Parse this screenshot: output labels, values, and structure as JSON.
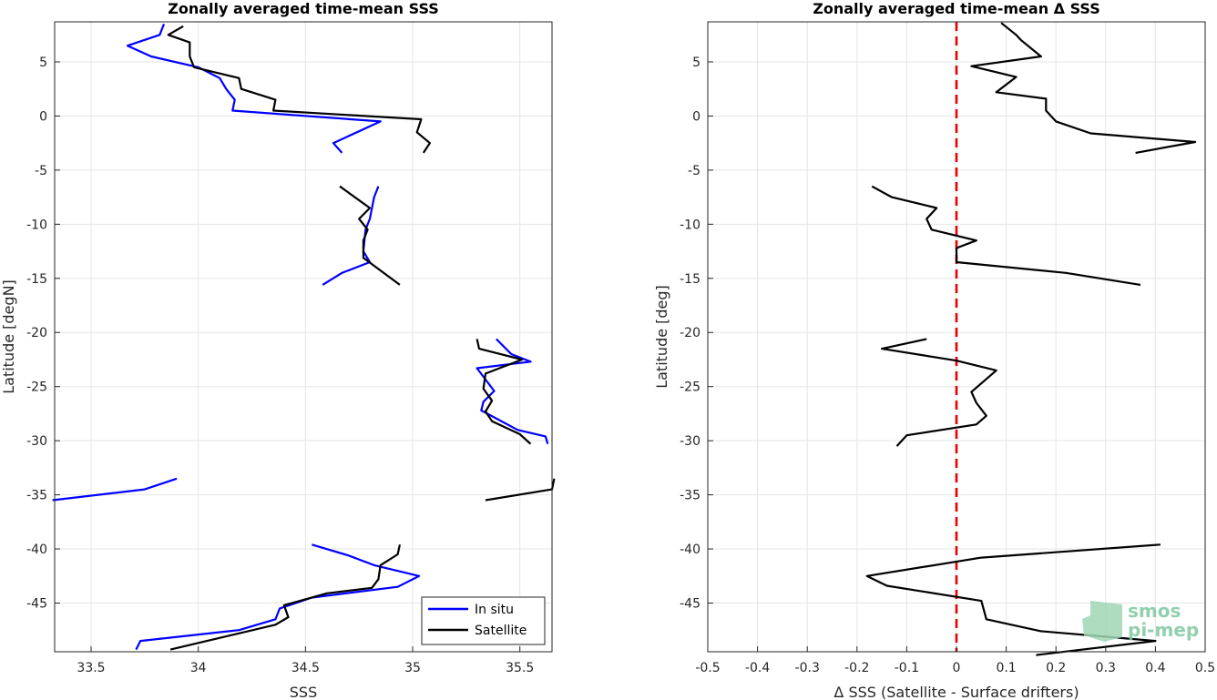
{
  "chart_data": [
    {
      "type": "line",
      "title": "Zonally averaged time-mean SSS",
      "xlabel": "SSS",
      "ylabel": "Latitude [degN]",
      "xlim": [
        33.33,
        35.65
      ],
      "ylim": [
        -49.5,
        8.7
      ],
      "xticks": [
        33.5,
        34,
        34.5,
        35,
        35.5
      ],
      "xtick_labels": [
        "33.5",
        "34",
        "34.5",
        "35",
        "35.5"
      ],
      "yticks": [
        5,
        0,
        -5,
        -10,
        -15,
        -20,
        -25,
        -30,
        -35,
        -40,
        -45
      ],
      "ytick_labels": [
        "5",
        "0",
        "-5",
        "-10",
        "-15",
        "-20",
        "-25",
        "-30",
        "-35",
        "-40",
        "-45"
      ],
      "grid": true,
      "legend_position": "bottom-right",
      "series": [
        {
          "name": "In situ",
          "color": "#0000ff",
          "segments": [
            [
              [
                33.84,
                8.5
              ],
              [
                33.82,
                7.5
              ],
              [
                33.67,
                6.5
              ],
              [
                33.78,
                5.5
              ],
              [
                34.0,
                4.5
              ],
              [
                34.1,
                3.5
              ],
              [
                34.13,
                2.5
              ],
              [
                34.17,
                1.5
              ],
              [
                34.16,
                0.5
              ],
              [
                34.85,
                -0.5
              ],
              [
                34.63,
                -2.5
              ],
              [
                34.67,
                -3.4
              ]
            ],
            [
              [
                34.84,
                -6.5
              ],
              [
                34.82,
                -7.5
              ],
              [
                34.8,
                -9.5
              ],
              [
                34.78,
                -10.5
              ],
              [
                34.77,
                -12.5
              ],
              [
                34.8,
                -13.5
              ],
              [
                34.67,
                -14.5
              ],
              [
                34.58,
                -15.6
              ]
            ],
            [
              [
                35.39,
                -20.6
              ],
              [
                35.46,
                -22
              ],
              [
                35.55,
                -22.7
              ],
              [
                35.3,
                -23.3
              ],
              [
                35.38,
                -25.4
              ],
              [
                35.33,
                -26.4
              ],
              [
                35.32,
                -27.2
              ],
              [
                35.49,
                -29
              ],
              [
                35.62,
                -29.6
              ],
              [
                35.63,
                -30.3
              ]
            ],
            [
              [
                33.9,
                -33.5
              ],
              [
                33.75,
                -34.5
              ],
              [
                33.32,
                -35.5
              ]
            ],
            [
              [
                34.53,
                -39.6
              ],
              [
                34.7,
                -40.6
              ],
              [
                34.82,
                -41.5
              ],
              [
                35.03,
                -42.5
              ],
              [
                34.93,
                -43.5
              ],
              [
                34.53,
                -44.5
              ],
              [
                34.38,
                -45.5
              ],
              [
                34.36,
                -46.5
              ],
              [
                34.19,
                -47.5
              ],
              [
                33.73,
                -48.5
              ],
              [
                33.71,
                -49.3
              ]
            ]
          ]
        },
        {
          "name": "Satellite",
          "color": "#000000",
          "segments": [
            [
              [
                33.93,
                8.3
              ],
              [
                33.86,
                7.5
              ],
              [
                33.96,
                6.8
              ],
              [
                33.96,
                5.5
              ],
              [
                33.98,
                4.5
              ],
              [
                34.19,
                3.5
              ],
              [
                34.2,
                2.5
              ],
              [
                34.36,
                1.5
              ],
              [
                34.35,
                0.5
              ],
              [
                35.04,
                -0.3
              ],
              [
                35.02,
                -1.5
              ],
              [
                35.08,
                -2.5
              ],
              [
                35.05,
                -3.4
              ]
            ],
            [
              [
                34.66,
                -6.5
              ],
              [
                34.8,
                -8.5
              ],
              [
                34.75,
                -9.5
              ],
              [
                34.79,
                -10.5
              ],
              [
                34.77,
                -11.5
              ],
              [
                34.77,
                -13.1
              ],
              [
                34.94,
                -15.6
              ]
            ],
            [
              [
                35.3,
                -20.6
              ],
              [
                35.31,
                -21.5
              ],
              [
                35.51,
                -22.5
              ],
              [
                35.34,
                -23.8
              ],
              [
                35.33,
                -25.2
              ],
              [
                35.37,
                -26.3
              ],
              [
                35.34,
                -27.3
              ],
              [
                35.37,
                -28.2
              ],
              [
                35.5,
                -29.4
              ],
              [
                35.55,
                -30.3
              ]
            ],
            [
              [
                35.66,
                -33.5
              ],
              [
                35.65,
                -34.5
              ],
              [
                35.34,
                -35.5
              ]
            ],
            [
              [
                34.94,
                -39.6
              ],
              [
                34.93,
                -40.5
              ],
              [
                34.85,
                -41.5
              ],
              [
                34.84,
                -42.8
              ],
              [
                34.81,
                -43.6
              ],
              [
                34.6,
                -44.1
              ],
              [
                34.4,
                -45.2
              ],
              [
                34.42,
                -46.3
              ],
              [
                34.36,
                -47
              ],
              [
                33.87,
                -49.3
              ]
            ]
          ]
        }
      ]
    },
    {
      "type": "line",
      "title": "Zonally averaged time-mean Δ SSS",
      "xlabel": "Δ SSS (Satellite - Surface drifters)",
      "ylabel": "Latitude [deg]",
      "xlim": [
        -0.5,
        0.5
      ],
      "ylim": [
        -49.5,
        8.7
      ],
      "xticks": [
        -0.5,
        -0.4,
        -0.3,
        -0.2,
        -0.1,
        0,
        0.1,
        0.2,
        0.3,
        0.4,
        0.5
      ],
      "xtick_labels": [
        "-0.5",
        "-0.4",
        "-0.3",
        "-0.2",
        "-0.1",
        "0",
        "0.1",
        "0.2",
        "0.3",
        "0.4",
        "0.5"
      ],
      "yticks": [
        5,
        0,
        -5,
        -10,
        -15,
        -20,
        -25,
        -30,
        -35,
        -40,
        -45
      ],
      "ytick_labels": [
        "5",
        "0",
        "-5",
        "-10",
        "-15",
        "-20",
        "-25",
        "-30",
        "-35",
        "-40",
        "-45"
      ],
      "grid": true,
      "reference_line": {
        "x": 0,
        "color": "#e60000",
        "style": "dashed"
      },
      "series": [
        {
          "name": "",
          "color": "#000000",
          "segments": [
            [
              [
                0.09,
                8.6
              ],
              [
                0.12,
                7.5
              ],
              [
                0.13,
                7.0
              ],
              [
                0.17,
                5.5
              ],
              [
                0.03,
                4.6
              ],
              [
                0.12,
                3.6
              ],
              [
                0.08,
                2.2
              ],
              [
                0.18,
                1.6
              ],
              [
                0.18,
                0.5
              ],
              [
                0.2,
                -0.5
              ],
              [
                0.27,
                -1.6
              ],
              [
                0.48,
                -2.4
              ],
              [
                0.36,
                -3.4
              ]
            ],
            [
              [
                -0.17,
                -6.5
              ],
              [
                -0.13,
                -7.5
              ],
              [
                -0.04,
                -8.5
              ],
              [
                -0.06,
                -9.5
              ],
              [
                -0.05,
                -10.5
              ],
              [
                0.04,
                -11.5
              ],
              [
                0.0,
                -12.2
              ],
              [
                0.0,
                -13.5
              ],
              [
                0.22,
                -14.5
              ],
              [
                0.37,
                -15.6
              ]
            ],
            [
              [
                -0.06,
                -20.6
              ],
              [
                -0.15,
                -21.5
              ],
              [
                0.0,
                -22.6
              ],
              [
                0.08,
                -23.5
              ],
              [
                0.03,
                -25.5
              ],
              [
                0.04,
                -26.5
              ],
              [
                0.06,
                -27.7
              ],
              [
                0.04,
                -28.5
              ],
              [
                -0.1,
                -29.5
              ],
              [
                -0.12,
                -30.5
              ]
            ],
            [
              [
                0.41,
                -39.6
              ],
              [
                0.05,
                -40.8
              ],
              [
                -0.18,
                -42.5
              ],
              [
                -0.14,
                -43.4
              ],
              [
                0.05,
                -44.8
              ],
              [
                0.06,
                -46.5
              ],
              [
                0.17,
                -47.6
              ],
              [
                0.4,
                -48.5
              ],
              [
                0.16,
                -49.8
              ]
            ]
          ]
        }
      ]
    }
  ],
  "legend": {
    "entries": [
      {
        "label": "In situ",
        "color": "#0000ff"
      },
      {
        "label": "Satellite",
        "color": "#000000"
      }
    ]
  },
  "logo": {
    "line1": "smos",
    "line2": "pi-mep",
    "color": "#7fc7a0"
  }
}
